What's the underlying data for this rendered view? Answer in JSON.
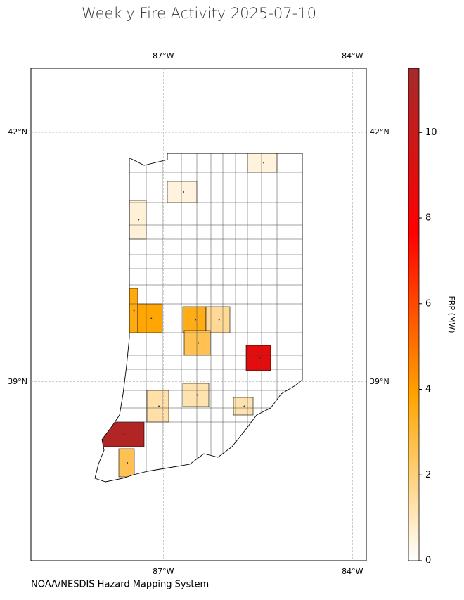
{
  "chart_data": {
    "type": "choropleth",
    "title": "Weekly Fire Activity 2025-07-10",
    "footer": "NOAA/NESDIS Hazard Mapping System",
    "lon_range": [
      -89.1,
      -83.78
    ],
    "lat_range": [
      36.85,
      42.77
    ],
    "lon_ticks": [
      {
        "value": -87,
        "label": "87°W"
      },
      {
        "value": -84,
        "label": "84°W"
      }
    ],
    "lat_ticks": [
      {
        "value": 42,
        "label": "42°N"
      },
      {
        "value": 39,
        "label": "39°N"
      }
    ],
    "colorbar": {
      "label": "FRP (MW)",
      "range": [
        0,
        11.5
      ],
      "ticks": [
        0,
        2,
        4,
        6,
        8,
        10
      ],
      "colors": [
        "#ffffff",
        "#ffa500",
        "#ff0000",
        "#a52a2a"
      ]
    },
    "regions": [
      {
        "value": 0.5
      },
      {
        "value": 0.5
      },
      {
        "value": 0.6
      },
      {
        "value": 3.6
      },
      {
        "value": 3.8
      },
      {
        "value": 3.5
      },
      {
        "value": 1.6
      },
      {
        "value": 2.6
      },
      {
        "value": 8.8
      },
      {
        "value": 1.3
      },
      {
        "value": 1.2
      },
      {
        "value": 1.2
      },
      {
        "value": 11
      },
      {
        "value": 2.6
      }
    ]
  }
}
